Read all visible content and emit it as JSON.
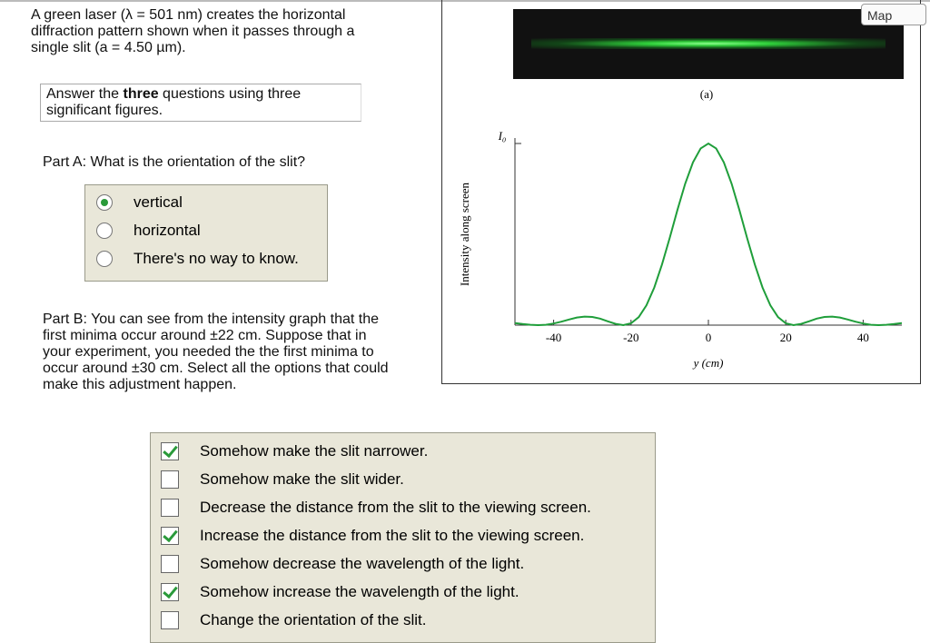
{
  "intro": "A green laser (λ = 501 nm) creates the horizontal diffraction pattern shown when it passes through a single slit (a = 4.50 µm).",
  "instructions": {
    "before": "Answer the ",
    "bold": "three",
    "after": " questions using three significant figures."
  },
  "part_a": {
    "label": "Part A",
    "question": ": What is the orientation of the slit?",
    "options": [
      {
        "text": "vertical",
        "selected": true
      },
      {
        "text": "horizontal",
        "selected": false
      },
      {
        "text": "There's no way to know.",
        "selected": false
      }
    ]
  },
  "part_b": {
    "label": "Part B",
    "question": ": You can see from the intensity graph that the first minima occur around ±22 cm. Suppose that in your experiment, you needed the the first minima to occur around ±30 cm. Select all the options that could make this adjustment happen.",
    "options": [
      {
        "text": "Somehow make the slit narrower.",
        "checked": true
      },
      {
        "text": "Somehow make the slit wider.",
        "checked": false
      },
      {
        "text": "Decrease the distance from the slit to the viewing screen.",
        "checked": false
      },
      {
        "text": "Increase the distance from the slit to the viewing screen.",
        "checked": true
      },
      {
        "text": "Somehow decrease the wavelength of the light.",
        "checked": false
      },
      {
        "text": "Somehow increase the wavelength of the light.",
        "checked": true
      },
      {
        "text": "Change the orientation of the slit.",
        "checked": false
      }
    ]
  },
  "map_button": "Map",
  "figure_label": "(a)",
  "chart_data": {
    "type": "line",
    "xlabel": "y (cm)",
    "ylabel": "Intensity along screen",
    "color": "#1f9e3a",
    "x": [
      -50,
      -48,
      -46,
      -44,
      -42,
      -40,
      -38,
      -36,
      -34,
      -32,
      -30,
      -28,
      -26,
      -24,
      -22,
      -20,
      -18,
      -16,
      -14,
      -12,
      -10,
      -8,
      -6,
      -4,
      -2,
      0,
      2,
      4,
      6,
      8,
      10,
      12,
      14,
      16,
      18,
      20,
      22,
      24,
      26,
      28,
      30,
      32,
      34,
      36,
      38,
      40,
      42,
      44,
      46,
      48,
      50
    ],
    "values": [
      0.011,
      0.006,
      0.002,
      0,
      0.002,
      0.009,
      0.019,
      0.031,
      0.042,
      0.047,
      0.045,
      0.036,
      0.021,
      0.007,
      0,
      0.01,
      0.044,
      0.109,
      0.207,
      0.334,
      0.48,
      0.634,
      0.778,
      0.896,
      0.973,
      1,
      0.973,
      0.896,
      0.778,
      0.634,
      0.48,
      0.334,
      0.207,
      0.109,
      0.044,
      0.01,
      0,
      0.007,
      0.021,
      0.036,
      0.045,
      0.047,
      0.042,
      0.031,
      0.019,
      0.009,
      0.002,
      0,
      0.002,
      0.006,
      0.011
    ],
    "xlim": [
      -50,
      50
    ],
    "ylim": [
      0,
      1
    ],
    "xticks": [
      -40,
      -20,
      0,
      20,
      40
    ],
    "yticks": [
      {
        "value": 1,
        "label": "I₀"
      }
    ]
  }
}
